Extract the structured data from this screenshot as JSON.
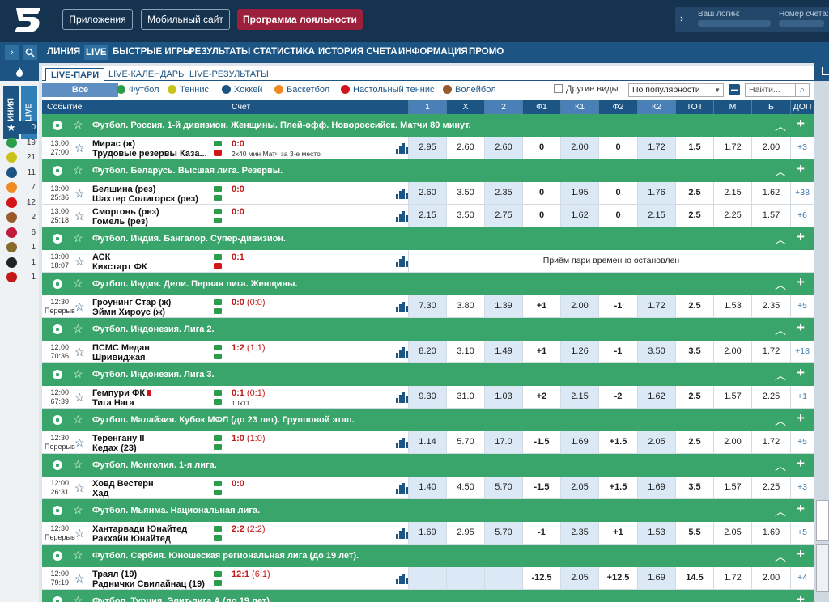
{
  "top": {
    "btn_apps": "Приложения",
    "btn_mobile": "Мобильный сайт",
    "btn_loyalty": "Программа лояльности",
    "login_label": "Ваш логин:",
    "account_label": "Номер счета:"
  },
  "nav": {
    "items": [
      "ЛИНИЯ",
      "LIVE",
      "БЫСТРЫЕ ИГРЫ",
      "РЕЗУЛЬТАТЫ",
      "СТАТИСТИКА",
      "ИСТОРИЯ СЧЕТА",
      "ИНФОРМАЦИЯ",
      "ПРОМО"
    ]
  },
  "left": {
    "tab_line": "ЛИНИЯ",
    "tab_live": "LIVE",
    "sports": [
      {
        "icon": "star-icon",
        "count": "0"
      },
      {
        "icon": "football-icon",
        "count": "19"
      },
      {
        "icon": "tennis-icon",
        "count": "21"
      },
      {
        "icon": "hockey-icon",
        "count": "11"
      },
      {
        "icon": "basketball-icon",
        "count": "7"
      },
      {
        "icon": "table-tennis-icon",
        "count": "12"
      },
      {
        "icon": "volleyball-icon",
        "count": "2"
      },
      {
        "icon": "esports-icon",
        "count": "6"
      },
      {
        "icon": "cricket-icon",
        "count": "1"
      },
      {
        "icon": "snooker-icon",
        "count": "1"
      },
      {
        "icon": "darts-icon",
        "count": "1"
      }
    ]
  },
  "subtabs": [
    "LIVE-ПАРИ",
    "LIVE-КАЛЕНДАРЬ",
    "LIVE-РЕЗУЛЬТАТЫ"
  ],
  "filters": {
    "all": "Все",
    "sports": [
      "Футбол",
      "Теннис",
      "Хоккей",
      "Баскетбол",
      "Настольный теннис",
      "Волейбол"
    ],
    "other": "Другие виды",
    "sort": "По популярности",
    "search_placeholder": "Найти..."
  },
  "columns": [
    "Событие",
    "Счет",
    "1",
    "X",
    "2",
    "Ф1",
    "К1",
    "Ф2",
    "К2",
    "ТОТ",
    "М",
    "Б",
    "ДОП"
  ],
  "suspended_text": "Приём пари временно остановлен",
  "sections": [
    {
      "title": "Футбол. Россия. 1-й дивизион. Женщины. Плей-офф. Новороссийск. Матчи 80 минут.",
      "rows": [
        {
          "time": "13:00",
          "clock": "27:00",
          "team1": "Мирас (ж)",
          "team2": "Трудовые резервы Каза...",
          "score": "0:0",
          "sub": "",
          "note": "2x40 мин Матч за 3-е место",
          "video": true,
          "odds": [
            "2.95",
            "2.60",
            "2.60",
            "0",
            "2.00",
            "0",
            "1.72",
            "1.5",
            "1.72",
            "2.00",
            "+3"
          ]
        }
      ]
    },
    {
      "title": "Футбол. Беларусь. Высшая лига. Резервы.",
      "rows": [
        {
          "time": "13:00",
          "clock": "25:36",
          "team1": "Белшина (рез)",
          "team2": "Шахтер Солигорск (рез)",
          "score": "0:0",
          "sub": "",
          "note": "",
          "video": false,
          "odds": [
            "2.60",
            "3.50",
            "2.35",
            "0",
            "1.95",
            "0",
            "1.76",
            "2.5",
            "2.15",
            "1.62",
            "+38"
          ]
        },
        {
          "time": "13:00",
          "clock": "25:18",
          "team1": "Сморгонь (рез)",
          "team2": "Гомель (рез)",
          "score": "0:0",
          "sub": "",
          "note": "",
          "video": false,
          "odds": [
            "2.15",
            "3.50",
            "2.75",
            "0",
            "1.62",
            "0",
            "2.15",
            "2.5",
            "2.25",
            "1.57",
            "+6"
          ]
        }
      ]
    },
    {
      "title": "Футбол. Индия. Бангалор. Супер-дивизион.",
      "rows": [
        {
          "time": "13:00",
          "clock": "18:07",
          "team1": "АСК",
          "team2": "Кикстарт ФК",
          "score": "0:1",
          "sub": "",
          "note": "",
          "video": true,
          "suspended": true,
          "odds": []
        }
      ]
    },
    {
      "title": "Футбол. Индия. Дели. Первая лига. Женщины.",
      "rows": [
        {
          "time": "12:30",
          "clock": "Перерыв",
          "team1": "Гроунинг Стар (ж)",
          "team2": "Эйми Хироус (ж)",
          "score": "0:0",
          "sub": "(0:0)",
          "note": "",
          "video": false,
          "odds": [
            "7.30",
            "3.80",
            "1.39",
            "+1",
            "2.00",
            "-1",
            "1.72",
            "2.5",
            "1.53",
            "2.35",
            "+5"
          ]
        }
      ]
    },
    {
      "title": "Футбол. Индонезия. Лига 2.",
      "rows": [
        {
          "time": "12:00",
          "clock": "70:36",
          "team1": "ПСМС Медан",
          "team2": "Шривиджая",
          "score": "1:2",
          "sub": "(1:1)",
          "note": "",
          "video": false,
          "odds": [
            "8.20",
            "3.10",
            "1.49",
            "+1",
            "1.26",
            "-1",
            "3.50",
            "3.5",
            "2.00",
            "1.72",
            "+18"
          ]
        }
      ]
    },
    {
      "title": "Футбол. Индонезия. Лига 3.",
      "rows": [
        {
          "time": "12:00",
          "clock": "67:39",
          "team1": "Гемпури ФК",
          "team2": "Тига Нага",
          "score": "0:1",
          "sub": "(0:1)",
          "note": "10x11",
          "redcard": true,
          "video": false,
          "odds": [
            "9.30",
            "31.0",
            "1.03",
            "+2",
            "2.15",
            "-2",
            "1.62",
            "2.5",
            "1.57",
            "2.25",
            "+1"
          ]
        }
      ]
    },
    {
      "title": "Футбол. Малайзия. Кубок МФЛ (до 23 лет). Групповой этап.",
      "rows": [
        {
          "time": "12:30",
          "clock": "Перерыв",
          "team1": "Теренгану II",
          "team2": "Кедах (23)",
          "score": "1:0",
          "sub": "(1:0)",
          "note": "",
          "video": false,
          "odds": [
            "1.14",
            "5.70",
            "17.0",
            "-1.5",
            "1.69",
            "+1.5",
            "2.05",
            "2.5",
            "2.00",
            "1.72",
            "+5"
          ]
        }
      ]
    },
    {
      "title": "Футбол. Монголия. 1-я лига.",
      "rows": [
        {
          "time": "12:00",
          "clock": "26:31",
          "team1": "Ховд Вестерн",
          "team2": "Хад",
          "score": "0:0",
          "sub": "",
          "note": "",
          "video": false,
          "odds": [
            "1.40",
            "4.50",
            "5.70",
            "-1.5",
            "2.05",
            "+1.5",
            "1.69",
            "3.5",
            "1.57",
            "2.25",
            "+3"
          ]
        }
      ]
    },
    {
      "title": "Футбол. Мьянма. Национальная лига.",
      "rows": [
        {
          "time": "12:30",
          "clock": "Перерыв",
          "team1": "Хантарвади Юнайтед",
          "team2": "Ракхайн Юнайтед",
          "score": "2:2",
          "sub": "(2:2)",
          "note": "",
          "video": false,
          "odds": [
            "1.69",
            "2.95",
            "5.70",
            "-1",
            "2.35",
            "+1",
            "1.53",
            "5.5",
            "2.05",
            "1.69",
            "+5"
          ]
        }
      ]
    },
    {
      "title": "Футбол. Сербия. Юношеская региональная лига (до 19 лет).",
      "rows": [
        {
          "time": "12:00",
          "clock": "79:19",
          "team1": "Траял (19)",
          "team2": "Раднички Свилайнац (19)",
          "score": "12:1",
          "sub": "(6:1)",
          "note": "",
          "video": false,
          "odds": [
            "",
            "",
            "",
            "-12.5",
            "2.05",
            "+12.5",
            "1.69",
            "14.5",
            "1.72",
            "2.00",
            "+4"
          ]
        }
      ]
    },
    {
      "title": "Футбол. Турция. Элит-лига А (до 19 лет).",
      "rows": []
    }
  ]
}
